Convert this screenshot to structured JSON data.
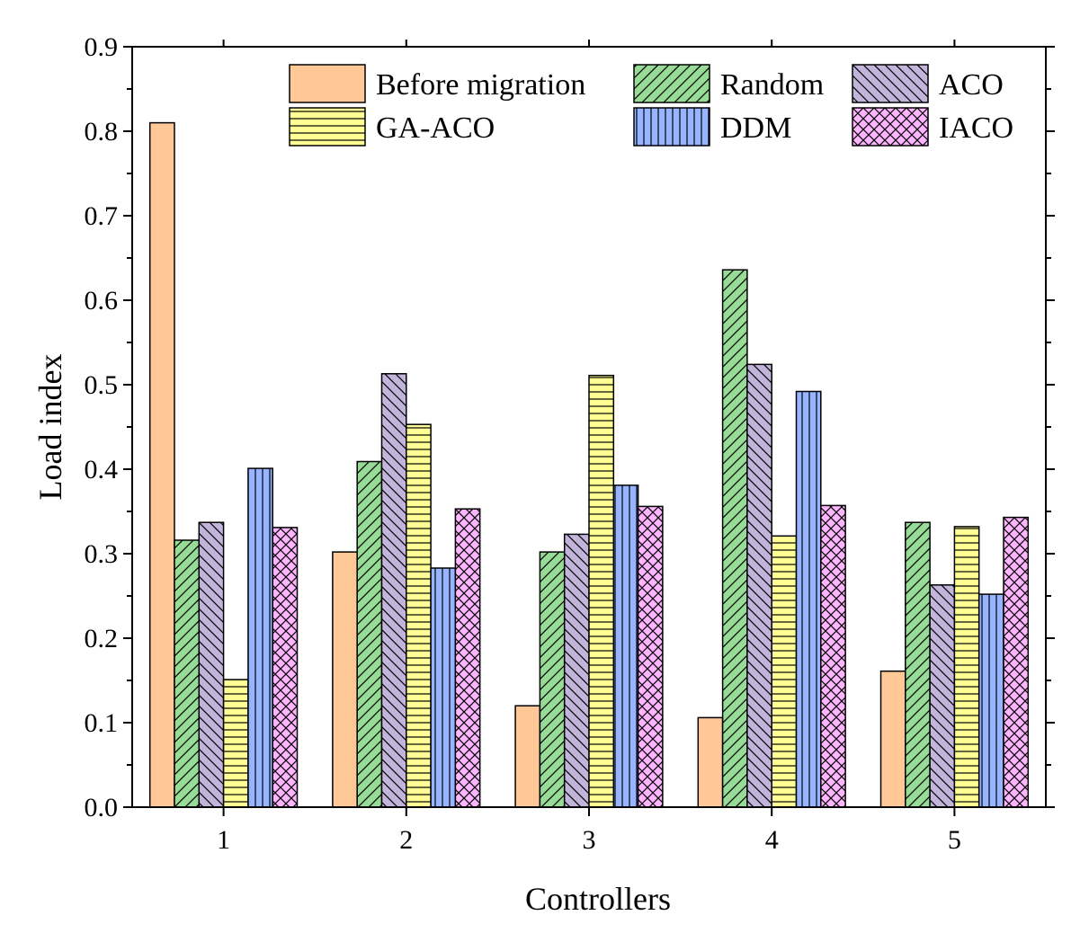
{
  "chart_data": {
    "type": "bar",
    "title": "",
    "xlabel": "Controllers",
    "ylabel": "Load index",
    "categories": [
      "1",
      "2",
      "3",
      "4",
      "5"
    ],
    "ylim": [
      0.0,
      0.9
    ],
    "yticks": [
      "0.0",
      "0.1",
      "0.2",
      "0.3",
      "0.4",
      "0.5",
      "0.6",
      "0.7",
      "0.8",
      "0.9"
    ],
    "grid": false,
    "legend_position": "top",
    "series": [
      {
        "name": "Before migration",
        "values": [
          0.81,
          0.302,
          0.12,
          0.106,
          0.161
        ],
        "color": "#FFC896",
        "pattern": "none"
      },
      {
        "name": "Random",
        "values": [
          0.316,
          0.409,
          0.302,
          0.636,
          0.337
        ],
        "color": "#96DC96",
        "pattern": "diag-up"
      },
      {
        "name": "ACO",
        "values": [
          0.337,
          0.513,
          0.323,
          0.524,
          0.263
        ],
        "color": "#C3B4DC",
        "pattern": "diag-down"
      },
      {
        "name": "GA-ACO",
        "values": [
          0.151,
          0.453,
          0.511,
          0.321,
          0.332
        ],
        "color": "#FFFF96",
        "pattern": "horizontal"
      },
      {
        "name": "DDM",
        "values": [
          0.401,
          0.283,
          0.381,
          0.492,
          0.252
        ],
        "color": "#96B4FF",
        "pattern": "vertical"
      },
      {
        "name": "IACO",
        "values": [
          0.331,
          0.353,
          0.356,
          0.357,
          0.343
        ],
        "color": "#FFB4FF",
        "pattern": "cross"
      }
    ]
  }
}
